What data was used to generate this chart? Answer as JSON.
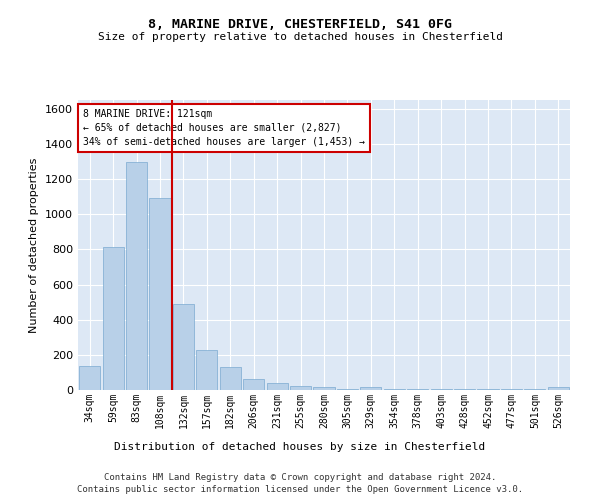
{
  "title_line1": "8, MARINE DRIVE, CHESTERFIELD, S41 0FG",
  "title_line2": "Size of property relative to detached houses in Chesterfield",
  "xlabel": "Distribution of detached houses by size in Chesterfield",
  "ylabel": "Number of detached properties",
  "categories": [
    "34sqm",
    "59sqm",
    "83sqm",
    "108sqm",
    "132sqm",
    "157sqm",
    "182sqm",
    "206sqm",
    "231sqm",
    "255sqm",
    "280sqm",
    "305sqm",
    "329sqm",
    "354sqm",
    "378sqm",
    "403sqm",
    "428sqm",
    "452sqm",
    "477sqm",
    "501sqm",
    "526sqm"
  ],
  "values": [
    135,
    815,
    1295,
    1090,
    490,
    230,
    130,
    65,
    38,
    25,
    18,
    3,
    15,
    3,
    3,
    3,
    3,
    3,
    3,
    3,
    15
  ],
  "bar_color": "#b8d0e8",
  "bar_edge_color": "#7aaad0",
  "vline_color": "#cc0000",
  "annotation_box_color": "#cc0000",
  "marker_label": "8 MARINE DRIVE: 121sqm",
  "pct_smaller": "65% of detached houses are smaller (2,827)",
  "pct_larger": "34% of semi-detached houses are larger (1,453)",
  "ylim": [
    0,
    1650
  ],
  "background_color": "#dde8f5",
  "footer_line1": "Contains HM Land Registry data © Crown copyright and database right 2024.",
  "footer_line2": "Contains public sector information licensed under the Open Government Licence v3.0."
}
